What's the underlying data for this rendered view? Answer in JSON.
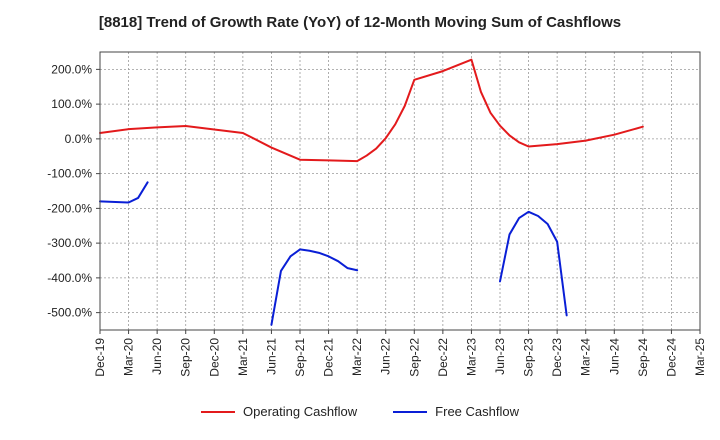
{
  "chart_data": {
    "type": "line",
    "title": "[8818]  Trend of Growth Rate (YoY) of 12-Month Moving Sum of Cashflows",
    "xlabel": "",
    "ylabel": "",
    "x_tick_labels": [
      "Dec-19",
      "Mar-20",
      "Jun-20",
      "Sep-20",
      "Dec-20",
      "Mar-21",
      "Jun-21",
      "Sep-21",
      "Dec-21",
      "Mar-22",
      "Jun-22",
      "Sep-22",
      "Dec-22",
      "Mar-23",
      "Jun-23",
      "Sep-23",
      "Dec-23",
      "Mar-24",
      "Jun-24",
      "Sep-24",
      "Dec-24",
      "Mar-25"
    ],
    "y_tick_labels": [
      "200.0%",
      "100.0%",
      "0.0%",
      "-100.0%",
      "-200.0%",
      "-300.0%",
      "-400.0%",
      "-500.0%"
    ],
    "y_ticks": [
      200,
      100,
      0,
      -100,
      -200,
      -300,
      -400,
      -500
    ],
    "ylim": [
      -550,
      250
    ],
    "grid": true,
    "legend_position": "bottom",
    "series": [
      {
        "name": "Operating Cashflow",
        "color": "#e31a1c",
        "points": [
          {
            "x": "Dec-19",
            "y": 17
          },
          {
            "x": "Mar-20",
            "y": 28
          },
          {
            "x": "Jun-20",
            "y": 33
          },
          {
            "x": "Sep-20",
            "y": 37
          },
          {
            "x": "Dec-20",
            "y": 27
          },
          {
            "x": "Mar-21",
            "y": 17
          },
          {
            "x": "Jun-21",
            "y": -25
          },
          {
            "x": "Sep-21",
            "y": -60
          },
          {
            "x": "Dec-21",
            "y": -62
          },
          {
            "x": "Mar-22",
            "y": -64
          },
          {
            "x": "Apr-22",
            "y": -48
          },
          {
            "x": "May-22",
            "y": -28
          },
          {
            "x": "Jun-22",
            "y": 2
          },
          {
            "x": "Jul-22",
            "y": 42
          },
          {
            "x": "Aug-22",
            "y": 95
          },
          {
            "x": "Sep-22",
            "y": 170
          },
          {
            "x": "Dec-22",
            "y": 195
          },
          {
            "x": "Mar-23",
            "y": 228
          },
          {
            "x": "Apr-23",
            "y": 135
          },
          {
            "x": "May-23",
            "y": 75
          },
          {
            "x": "Jun-23",
            "y": 38
          },
          {
            "x": "Jul-23",
            "y": 10
          },
          {
            "x": "Aug-23",
            "y": -10
          },
          {
            "x": "Sep-23",
            "y": -22
          },
          {
            "x": "Dec-23",
            "y": -15
          },
          {
            "x": "Mar-24",
            "y": -5
          },
          {
            "x": "Jun-24",
            "y": 12
          },
          {
            "x": "Sep-24",
            "y": 35
          }
        ]
      },
      {
        "name": "Free Cashflow",
        "color": "#0a1fd6",
        "points": [
          {
            "x": "Dec-19",
            "y": -180
          },
          {
            "x": "Mar-20",
            "y": -183
          },
          {
            "x": "Apr-20",
            "y": -170
          },
          {
            "x": "May-20",
            "y": -125
          },
          {
            "x": "Jun-21",
            "y": -535,
            "break": true
          },
          {
            "x": "Jul-21",
            "y": -380
          },
          {
            "x": "Aug-21",
            "y": -338
          },
          {
            "x": "Sep-21",
            "y": -318
          },
          {
            "x": "Oct-21",
            "y": -322
          },
          {
            "x": "Nov-21",
            "y": -328
          },
          {
            "x": "Dec-21",
            "y": -338
          },
          {
            "x": "Jan-22",
            "y": -352
          },
          {
            "x": "Feb-22",
            "y": -372
          },
          {
            "x": "Mar-22",
            "y": -378
          },
          {
            "x": "Jun-23",
            "y": -410,
            "break": true
          },
          {
            "x": "Jul-23",
            "y": -275
          },
          {
            "x": "Aug-23",
            "y": -228
          },
          {
            "x": "Sep-23",
            "y": -210
          },
          {
            "x": "Oct-23",
            "y": -222
          },
          {
            "x": "Nov-23",
            "y": -245
          },
          {
            "x": "Dec-23",
            "y": -296
          },
          {
            "x": "Jan-24",
            "y": -508
          }
        ]
      }
    ]
  }
}
